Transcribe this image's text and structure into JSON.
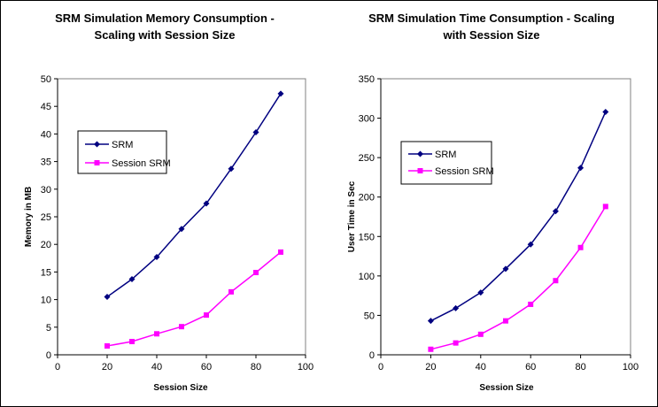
{
  "chart_data": [
    {
      "type": "line",
      "title_lines": [
        "SRM Simulation Memory Consumption -",
        "Scaling with Session Size"
      ],
      "xlabel": "Session Size",
      "ylabel": "Memory in MB",
      "xlim": [
        0,
        100
      ],
      "ylim": [
        0,
        50
      ],
      "xticks": [
        "0",
        "20",
        "40",
        "60",
        "80",
        "100"
      ],
      "yticks": [
        "0",
        "5",
        "10",
        "15",
        "20",
        "25",
        "30",
        "35",
        "40",
        "45",
        "50"
      ],
      "grid": false,
      "legend_position": "upper-left",
      "x": [
        20,
        30,
        40,
        50,
        60,
        70,
        80,
        90
      ],
      "series": [
        {
          "name": "SRM",
          "color": "#000080",
          "marker": "diamond",
          "values": [
            10.5,
            13.7,
            17.7,
            22.8,
            27.4,
            33.7,
            40.3,
            47.3
          ]
        },
        {
          "name": "Session SRM",
          "color": "#FF00FF",
          "marker": "square",
          "values": [
            1.6,
            2.4,
            3.8,
            5.1,
            7.2,
            11.4,
            14.9,
            18.6
          ]
        }
      ]
    },
    {
      "type": "line",
      "title_lines": [
        "SRM Simulation Time Consumption - Scaling",
        "with Session Size"
      ],
      "xlabel": "Session Size",
      "ylabel": "User Time in Sec",
      "xlim": [
        0,
        100
      ],
      "ylim": [
        0,
        350
      ],
      "xticks": [
        "0",
        "20",
        "40",
        "60",
        "80",
        "100"
      ],
      "yticks": [
        "0",
        "50",
        "100",
        "150",
        "200",
        "250",
        "300",
        "350"
      ],
      "grid": false,
      "legend_position": "upper-left",
      "x": [
        20,
        30,
        40,
        50,
        60,
        70,
        80,
        90
      ],
      "series": [
        {
          "name": "SRM",
          "color": "#000080",
          "marker": "diamond",
          "values": [
            43,
            59,
            79,
            109,
            140,
            182,
            237,
            308
          ]
        },
        {
          "name": "Session SRM",
          "color": "#FF00FF",
          "marker": "square",
          "values": [
            7,
            15,
            26,
            43,
            64,
            94,
            136,
            188
          ]
        }
      ]
    }
  ]
}
